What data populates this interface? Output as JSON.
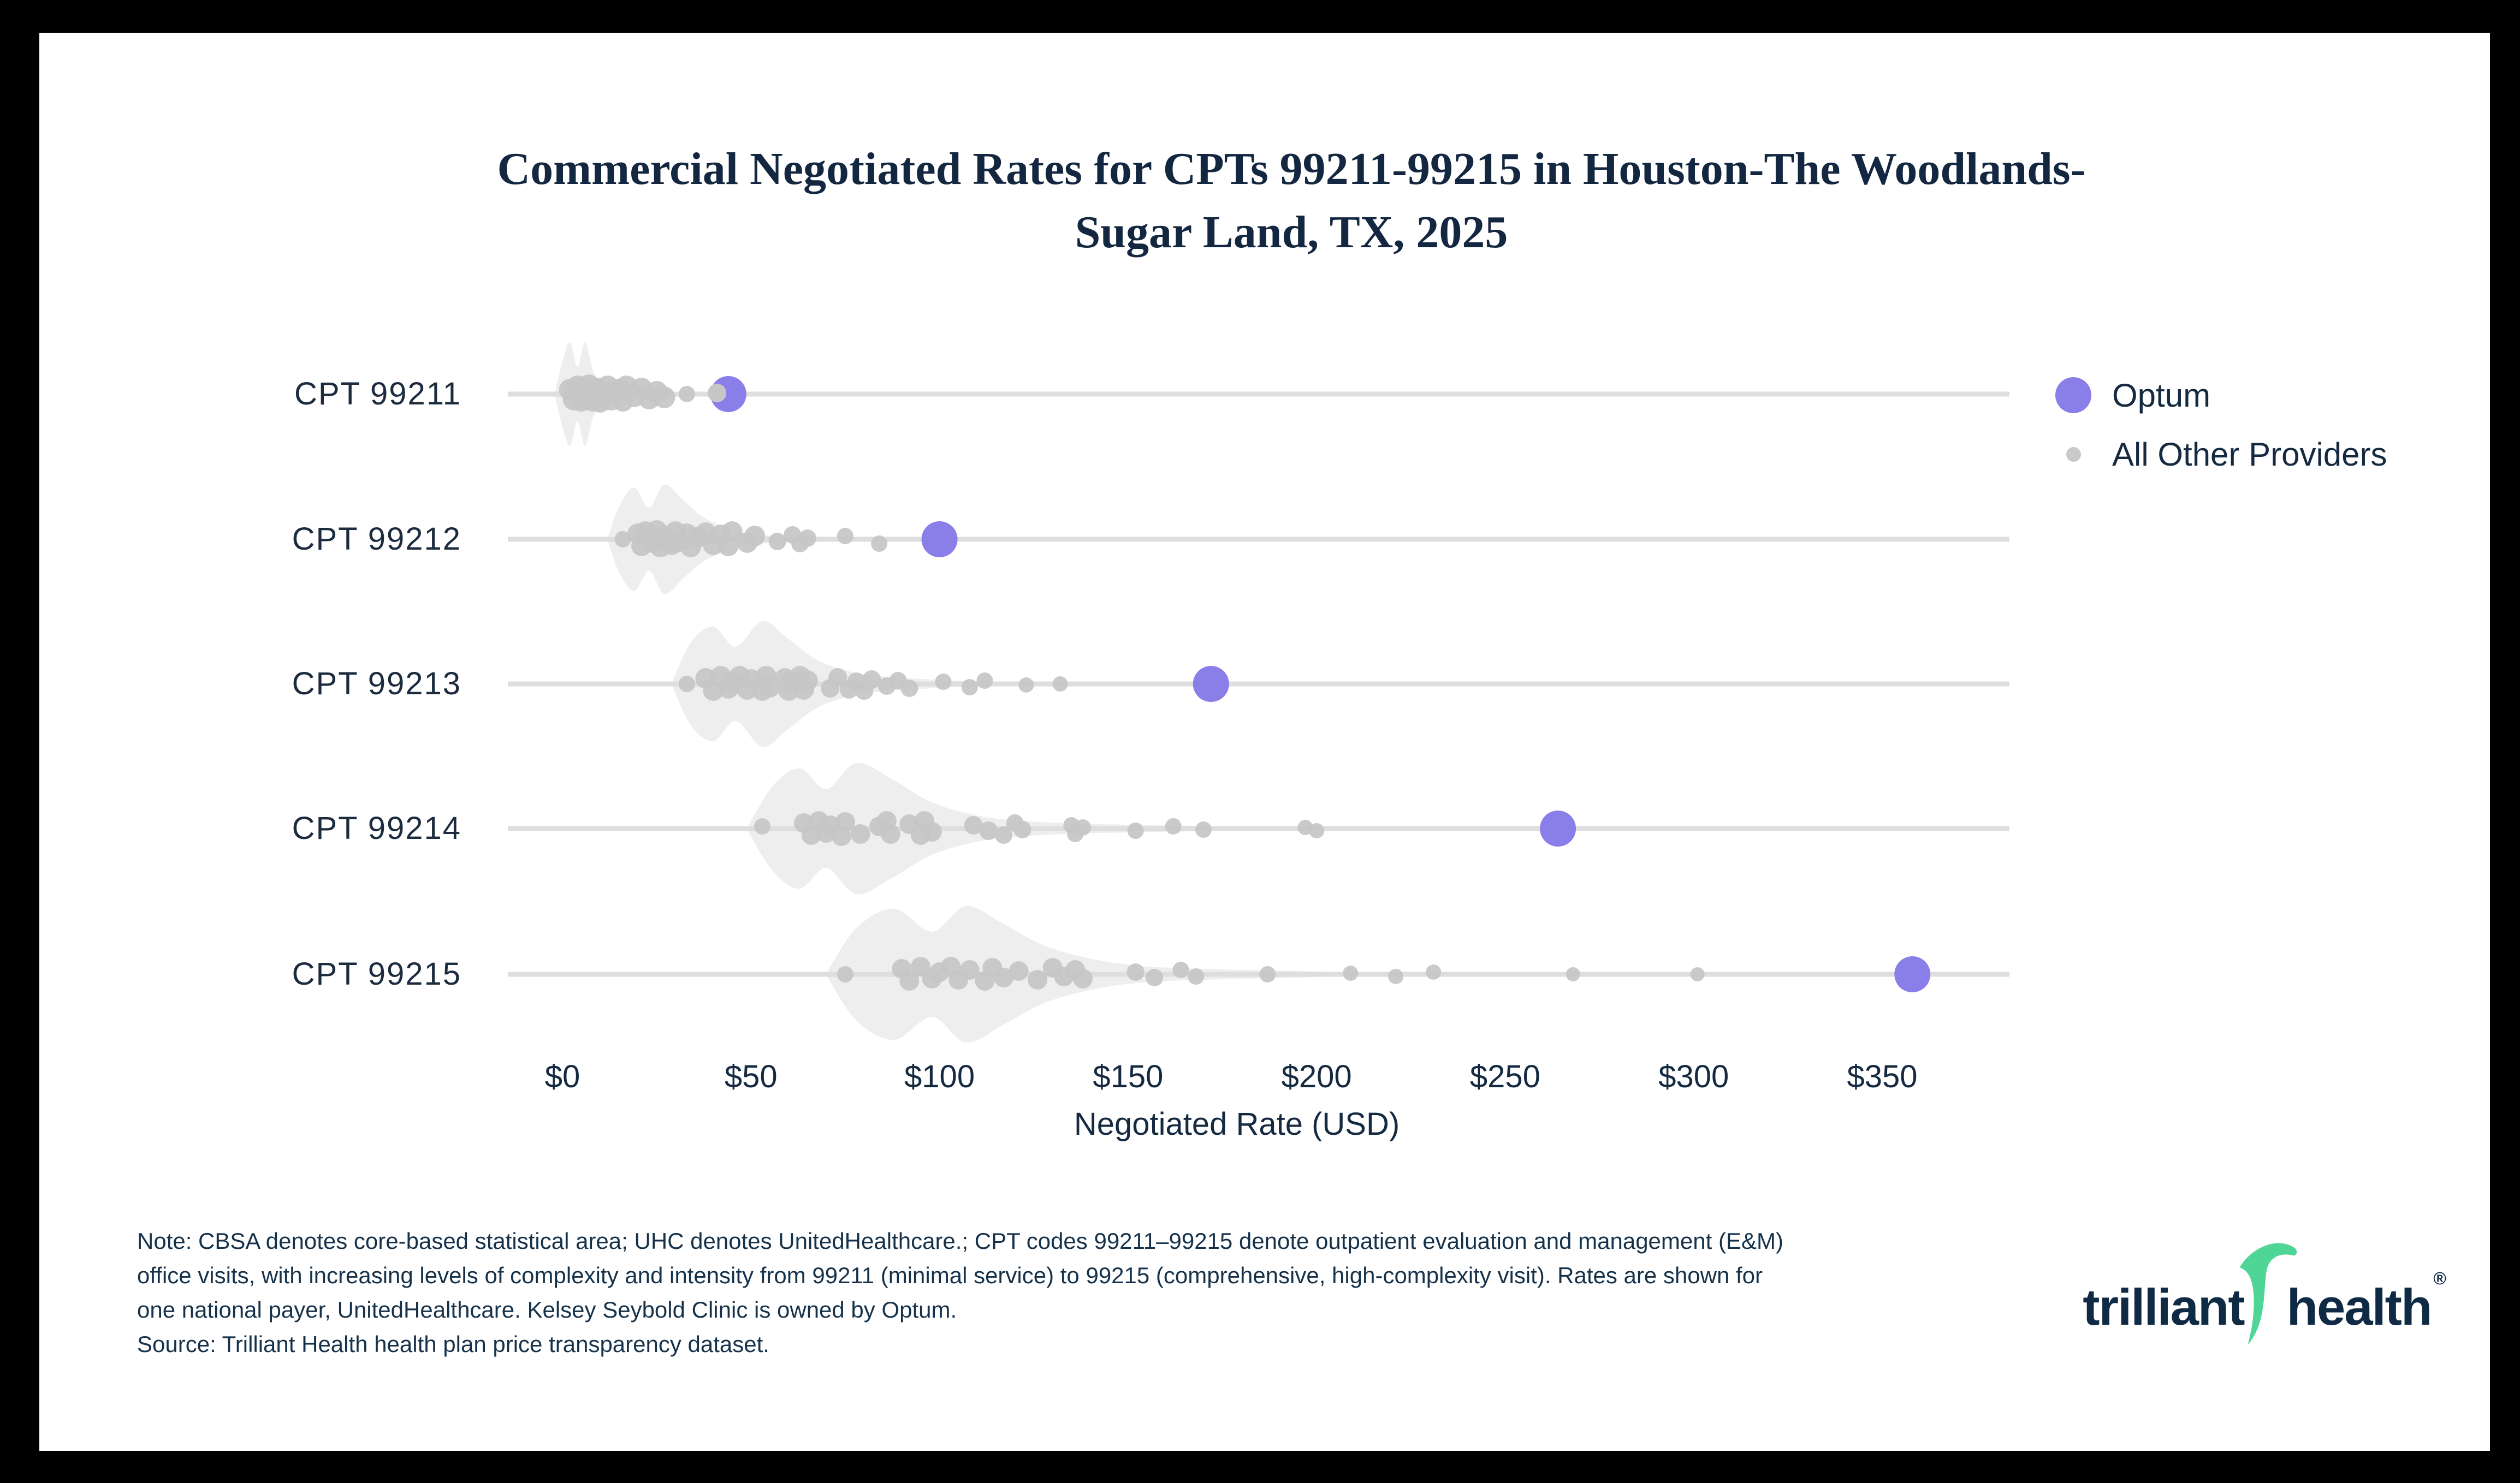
{
  "title": {
    "line1": "Commercial Negotiated Rates for CPTs 99211-99215 in Houston-The Woodlands-",
    "line2": "Sugar Land, TX, 2025"
  },
  "legend": {
    "items": [
      {
        "label": "Optum",
        "color": "#8a7ee8",
        "size": "large"
      },
      {
        "label": "All Other Providers",
        "color": "#c9c9c9",
        "size": "small"
      }
    ]
  },
  "x_axis": {
    "title": "Negotiated Rate (USD)",
    "ticks": [
      "$0",
      "$50",
      "$100",
      "$150",
      "$200",
      "$250",
      "$300",
      "$350"
    ],
    "tick_values": [
      0,
      50,
      100,
      150,
      200,
      250,
      300,
      350
    ],
    "range_usd": [
      -15,
      384
    ]
  },
  "chart_data": {
    "type": "scatter",
    "subtype": "strip-plot-with-violin",
    "title": "Commercial Negotiated Rates for CPTs 99211-99215 in Houston-The Woodlands-Sugar Land, TX, 2025",
    "xlabel": "Negotiated Rate (USD)",
    "ylabel": "",
    "xlim": [
      -15,
      384
    ],
    "grid": false,
    "legend_position": "right",
    "categories": [
      "CPT 99211",
      "CPT 99212",
      "CPT 99213",
      "CPT 99214",
      "CPT 99215"
    ],
    "series": [
      {
        "name": "Optum",
        "values": [
          44,
          100,
          172,
          264,
          358
        ]
      },
      {
        "name": "All Other Providers",
        "values_by_category": [
          [
            2,
            3,
            4,
            5,
            6,
            7,
            8,
            9,
            10,
            11,
            12,
            13,
            15,
            16,
            17,
            19,
            21,
            23,
            25,
            27,
            33,
            41
          ],
          [
            16,
            20,
            21,
            22,
            24,
            25,
            26,
            27,
            29,
            30,
            31,
            33,
            34,
            36,
            38,
            40,
            42,
            44,
            45,
            49,
            51,
            57,
            61,
            63,
            65,
            75,
            84
          ],
          [
            33,
            38,
            40,
            42,
            44,
            45,
            47,
            49,
            50,
            53,
            54,
            55,
            59,
            60,
            61,
            63,
            64,
            65,
            71,
            73,
            76,
            78,
            80,
            82,
            86,
            89,
            92,
            101,
            108,
            112,
            123,
            132
          ],
          [
            53,
            64,
            66,
            68,
            70,
            71,
            74,
            75,
            79,
            84,
            86,
            87,
            92,
            95,
            96,
            98,
            109,
            113,
            117,
            120,
            122,
            135,
            136,
            138,
            152,
            162,
            170,
            197,
            200
          ],
          [
            75,
            90,
            92,
            95,
            98,
            100,
            103,
            105,
            108,
            112,
            114,
            117,
            121,
            126,
            130,
            133,
            136,
            138,
            152,
            157,
            164,
            168,
            187,
            209,
            221,
            231,
            268,
            301
          ]
        ]
      }
    ],
    "rows": [
      {
        "label": "CPT 99211",
        "optum": 44,
        "dots": [
          [
            2,
            -8,
            20
          ],
          [
            3,
            10,
            20
          ],
          [
            4,
            -14,
            20
          ],
          [
            5,
            12,
            20
          ],
          [
            6,
            -4,
            20
          ],
          [
            7,
            -16,
            20
          ],
          [
            8,
            12,
            20
          ],
          [
            9,
            -10,
            20
          ],
          [
            10,
            14,
            20
          ],
          [
            11,
            -2,
            20
          ],
          [
            12,
            -14,
            20
          ],
          [
            13,
            10,
            20
          ],
          [
            15,
            -8,
            20
          ],
          [
            16,
            12,
            20
          ],
          [
            17,
            -14,
            20
          ],
          [
            19,
            4,
            20
          ],
          [
            21,
            -10,
            20
          ],
          [
            23,
            8,
            20
          ],
          [
            25,
            -4,
            20
          ],
          [
            27,
            6,
            20
          ],
          [
            33,
            0,
            15
          ]
        ],
        "front_dots": [
          [
            41,
            -2,
            17
          ]
        ],
        "violin": [
          [
            -2,
            2
          ],
          [
            0,
            60
          ],
          [
            2,
            95
          ],
          [
            4,
            50
          ],
          [
            6,
            95
          ],
          [
            8,
            45
          ],
          [
            10,
            22
          ],
          [
            13,
            10
          ],
          [
            17,
            4
          ],
          [
            20,
            1
          ]
        ]
      },
      {
        "label": "CPT 99212",
        "optum": 100,
        "dots": [
          [
            16,
            0,
            15
          ],
          [
            20,
            -10,
            19
          ],
          [
            21,
            12,
            19
          ],
          [
            22,
            -14,
            19
          ],
          [
            24,
            6,
            19
          ],
          [
            25,
            -16,
            19
          ],
          [
            26,
            14,
            19
          ],
          [
            27,
            -6,
            19
          ],
          [
            29,
            10,
            19
          ],
          [
            30,
            -14,
            19
          ],
          [
            31,
            4,
            19
          ],
          [
            33,
            -10,
            19
          ],
          [
            34,
            14,
            19
          ],
          [
            36,
            -4,
            19
          ],
          [
            38,
            -12,
            19
          ],
          [
            40,
            10,
            19
          ],
          [
            42,
            -8,
            19
          ],
          [
            44,
            12,
            19
          ],
          [
            45,
            -14,
            19
          ],
          [
            49,
            6,
            19
          ],
          [
            51,
            -6,
            19
          ],
          [
            57,
            4,
            16
          ],
          [
            61,
            -8,
            16
          ],
          [
            63,
            8,
            16
          ],
          [
            65,
            -2,
            16
          ],
          [
            75,
            -6,
            15
          ],
          [
            84,
            8,
            15
          ]
        ],
        "front_dots": [],
        "violin": [
          [
            12,
            2
          ],
          [
            15,
            60
          ],
          [
            19,
            95
          ],
          [
            23,
            58
          ],
          [
            27,
            100
          ],
          [
            32,
            72
          ],
          [
            37,
            42
          ],
          [
            44,
            20
          ],
          [
            50,
            10
          ],
          [
            58,
            5
          ],
          [
            66,
            1
          ]
        ]
      },
      {
        "label": "CPT 99213",
        "optum": 172,
        "dots": [
          [
            33,
            0,
            15
          ],
          [
            38,
            -10,
            19
          ],
          [
            40,
            12,
            19
          ],
          [
            42,
            -14,
            19
          ],
          [
            44,
            8,
            19
          ],
          [
            45,
            -4,
            19
          ],
          [
            47,
            -14,
            19
          ],
          [
            49,
            10,
            19
          ],
          [
            50,
            -8,
            19
          ],
          [
            53,
            12,
            19
          ],
          [
            54,
            -14,
            19
          ],
          [
            55,
            6,
            19
          ],
          [
            59,
            -10,
            19
          ],
          [
            60,
            12,
            19
          ],
          [
            61,
            -4,
            19
          ],
          [
            63,
            -14,
            19
          ],
          [
            64,
            10,
            19
          ],
          [
            65,
            -6,
            19
          ],
          [
            71,
            8,
            17
          ],
          [
            73,
            -12,
            17
          ],
          [
            76,
            10,
            17
          ],
          [
            78,
            -4,
            17
          ],
          [
            80,
            12,
            17
          ],
          [
            82,
            -8,
            17
          ],
          [
            86,
            4,
            16
          ],
          [
            89,
            -6,
            16
          ],
          [
            92,
            8,
            16
          ],
          [
            101,
            -4,
            15
          ],
          [
            108,
            6,
            15
          ],
          [
            112,
            -6,
            15
          ],
          [
            123,
            2,
            14
          ],
          [
            132,
            0,
            14
          ]
        ],
        "front_dots": [],
        "violin": [
          [
            29,
            2
          ],
          [
            34,
            75
          ],
          [
            40,
            105
          ],
          [
            46,
            68
          ],
          [
            53,
            115
          ],
          [
            60,
            82
          ],
          [
            68,
            42
          ],
          [
            78,
            20
          ],
          [
            88,
            12
          ],
          [
            98,
            8
          ],
          [
            108,
            5
          ],
          [
            118,
            2
          ]
        ]
      },
      {
        "label": "CPT 99214",
        "optum": 264,
        "dots": [
          [
            53,
            -4,
            15
          ],
          [
            64,
            -10,
            18
          ],
          [
            66,
            12,
            18
          ],
          [
            68,
            -14,
            18
          ],
          [
            70,
            8,
            18
          ],
          [
            71,
            -6,
            18
          ],
          [
            74,
            14,
            18
          ],
          [
            75,
            -12,
            18
          ],
          [
            79,
            10,
            18
          ],
          [
            84,
            -4,
            18
          ],
          [
            86,
            -14,
            18
          ],
          [
            87,
            10,
            18
          ],
          [
            92,
            -8,
            18
          ],
          [
            95,
            12,
            18
          ],
          [
            96,
            -14,
            18
          ],
          [
            98,
            6,
            18
          ],
          [
            109,
            -6,
            17
          ],
          [
            113,
            4,
            17
          ],
          [
            117,
            12,
            16
          ],
          [
            120,
            -10,
            16
          ],
          [
            122,
            2,
            16
          ],
          [
            135,
            -6,
            15
          ],
          [
            136,
            10,
            15
          ],
          [
            138,
            -2,
            15
          ],
          [
            152,
            4,
            15
          ],
          [
            162,
            -4,
            15
          ],
          [
            170,
            2,
            15
          ],
          [
            197,
            -2,
            14
          ],
          [
            200,
            4,
            14
          ]
        ],
        "front_dots": [],
        "violin": [
          [
            49,
            2
          ],
          [
            56,
            80
          ],
          [
            63,
            110
          ],
          [
            70,
            72
          ],
          [
            78,
            120
          ],
          [
            88,
            88
          ],
          [
            98,
            48
          ],
          [
            110,
            24
          ],
          [
            122,
            14
          ],
          [
            138,
            9
          ],
          [
            158,
            6
          ],
          [
            178,
            4
          ],
          [
            198,
            2
          ]
        ]
      },
      {
        "label": "CPT 99215",
        "optum": 358,
        "dots": [
          [
            75,
            0,
            15
          ],
          [
            90,
            -10,
            18
          ],
          [
            92,
            12,
            18
          ],
          [
            95,
            -14,
            18
          ],
          [
            98,
            8,
            18
          ],
          [
            100,
            -4,
            18
          ],
          [
            103,
            -14,
            18
          ],
          [
            105,
            10,
            18
          ],
          [
            108,
            -8,
            18
          ],
          [
            112,
            12,
            18
          ],
          [
            114,
            -12,
            18
          ],
          [
            117,
            6,
            18
          ],
          [
            121,
            -6,
            18
          ],
          [
            126,
            10,
            18
          ],
          [
            130,
            -12,
            18
          ],
          [
            133,
            4,
            18
          ],
          [
            136,
            -8,
            18
          ],
          [
            138,
            8,
            18
          ],
          [
            152,
            -4,
            16
          ],
          [
            157,
            6,
            16
          ],
          [
            164,
            -8,
            15
          ],
          [
            168,
            4,
            15
          ],
          [
            187,
            0,
            15
          ],
          [
            209,
            -2,
            14
          ],
          [
            221,
            4,
            14
          ],
          [
            231,
            -4,
            14
          ],
          [
            268,
            0,
            13
          ],
          [
            301,
            0,
            13
          ]
        ],
        "front_dots": [],
        "violin": [
          [
            70,
            2
          ],
          [
            78,
            85
          ],
          [
            88,
            120
          ],
          [
            98,
            78
          ],
          [
            107,
            125
          ],
          [
            117,
            92
          ],
          [
            128,
            52
          ],
          [
            142,
            26
          ],
          [
            156,
            14
          ],
          [
            175,
            9
          ],
          [
            195,
            6
          ],
          [
            210,
            2
          ]
        ]
      }
    ]
  },
  "note": {
    "lines": [
      "Note: CBSA denotes core-based statistical area; UHC denotes UnitedHealthcare.; CPT codes 99211–99215 denote outpatient evaluation and management (E&M)",
      "office visits, with increasing levels of complexity and intensity from 99211 (minimal service) to 99215 (comprehensive, high-complexity visit). Rates are shown for",
      "one national payer, UnitedHealthcare. Kelsey Seybold Clinic is owned by Optum.",
      "Source: Trilliant Health health plan price transparency dataset."
    ]
  },
  "logo": {
    "word1": "trilliant",
    "word2": "health",
    "registered": "®"
  },
  "colors": {
    "optum": "#8a7ee8",
    "others": "#c6c6c6",
    "violin": "#ececec",
    "baseline": "#dedede",
    "navy": "#152a40",
    "logo_green": "#4fd596",
    "background": "#ffffff",
    "frame": "#000000"
  }
}
